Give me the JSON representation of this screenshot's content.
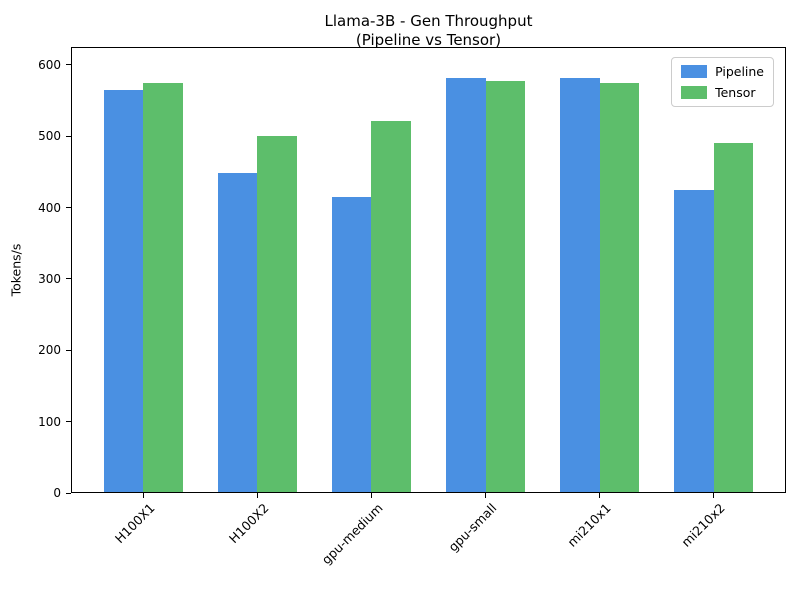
{
  "chart_data": {
    "type": "bar",
    "title": "Llama-3B - Gen Throughput (Pipeline vs Tensor)",
    "title_lines": [
      "Llama-3B - Gen Throughput",
      "(Pipeline vs Tensor)"
    ],
    "xlabel": "",
    "ylabel": "Tokens/s",
    "categories": [
      "H100X1",
      "H100X2",
      "gpu-medium",
      "gpu-small",
      "mi210x1",
      "mi210x2"
    ],
    "series": [
      {
        "name": "Pipeline",
        "color": "#4a90e2",
        "values": [
          565,
          448,
          415,
          581,
          581,
          425
        ]
      },
      {
        "name": "Tensor",
        "color": "#5dbe6b",
        "values": [
          575,
          500,
          522,
          577,
          574,
          490
        ]
      }
    ],
    "yticks": [
      0,
      100,
      200,
      300,
      400,
      500,
      600
    ],
    "ylim": [
      0,
      625
    ],
    "grid": false,
    "legend_position": "upper right",
    "bar_width_fraction": 0.35,
    "x_tick_rotation_deg": 45,
    "colors": {
      "spine": "#000000",
      "text": "#000000",
      "legend_border": "#cccccc",
      "background": "#ffffff"
    }
  }
}
